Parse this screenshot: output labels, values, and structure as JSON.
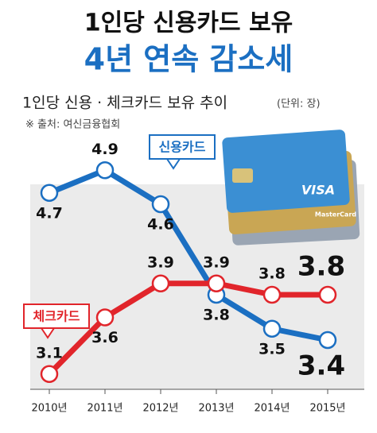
{
  "chart_data": {
    "type": "line",
    "title": "1인당 신용카드 보유",
    "subtitle": "4년 연속 감소세",
    "chart_title": "1인당 신용 · 체크카드 보유 추이",
    "unit": "(단위: 장)",
    "source": "※ 출처: 여신금융협회",
    "image_texts": [
      "VISA",
      "MasterCard"
    ],
    "categories": [
      "2010년",
      "2011년",
      "2012년",
      "2013년",
      "2014년",
      "2015년"
    ],
    "ylim": [
      3.0,
      5.0
    ],
    "series": [
      {
        "name": "신용카드",
        "color": "#1b6fc2",
        "values": [
          4.7,
          4.9,
          4.6,
          3.8,
          3.5,
          3.4
        ]
      },
      {
        "name": "체크카드",
        "color": "#e1252b",
        "values": [
          3.1,
          3.6,
          3.9,
          3.9,
          3.8,
          3.8
        ]
      }
    ]
  }
}
